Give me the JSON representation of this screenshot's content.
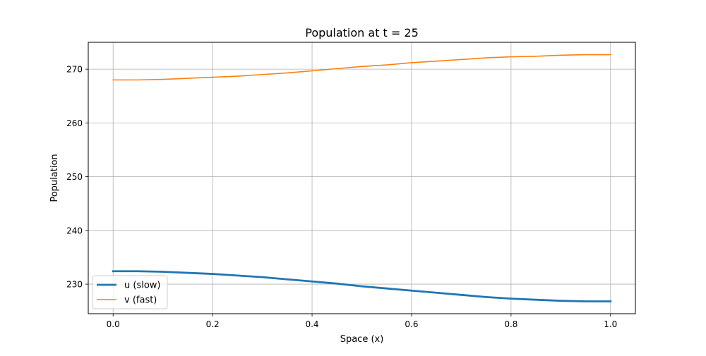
{
  "chart_data": {
    "type": "line",
    "title": "Population at t = 25",
    "xlabel": "Space (x)",
    "ylabel": "Population",
    "xlim": [
      -0.05,
      1.05
    ],
    "ylim": [
      224.5,
      275
    ],
    "x_ticks": [
      0.0,
      0.2,
      0.4,
      0.6,
      0.8,
      1.0
    ],
    "x_tick_labels": [
      "0.0",
      "0.2",
      "0.4",
      "0.6",
      "0.8",
      "1.0"
    ],
    "y_ticks": [
      230,
      240,
      250,
      260,
      270
    ],
    "y_tick_labels": [
      "230",
      "240",
      "250",
      "260",
      "270"
    ],
    "grid": true,
    "legend_position": "lower-left",
    "series": [
      {
        "name": "u (slow)",
        "color": "#1f77b4",
        "line_width": "thick",
        "x": [
          0.0,
          0.05,
          0.1,
          0.15,
          0.2,
          0.25,
          0.3,
          0.35,
          0.4,
          0.45,
          0.5,
          0.55,
          0.6,
          0.65,
          0.7,
          0.75,
          0.8,
          0.85,
          0.9,
          0.95,
          1.0
        ],
        "y": [
          232.4,
          232.4,
          232.3,
          232.1,
          231.9,
          231.6,
          231.3,
          230.9,
          230.5,
          230.1,
          229.6,
          229.2,
          228.8,
          228.4,
          228.0,
          227.6,
          227.3,
          227.1,
          226.9,
          226.8,
          226.8
        ]
      },
      {
        "name": "v (fast)",
        "color": "#ff7f0e",
        "line_width": "normal",
        "x": [
          0.0,
          0.05,
          0.1,
          0.15,
          0.2,
          0.25,
          0.3,
          0.35,
          0.4,
          0.45,
          0.5,
          0.55,
          0.6,
          0.65,
          0.7,
          0.75,
          0.8,
          0.85,
          0.9,
          0.95,
          1.0
        ],
        "y": [
          268.0,
          268.0,
          268.1,
          268.3,
          268.5,
          268.7,
          269.0,
          269.3,
          269.7,
          270.1,
          270.5,
          270.8,
          271.2,
          271.5,
          271.8,
          272.1,
          272.3,
          272.4,
          272.6,
          272.7,
          272.7
        ]
      }
    ]
  }
}
